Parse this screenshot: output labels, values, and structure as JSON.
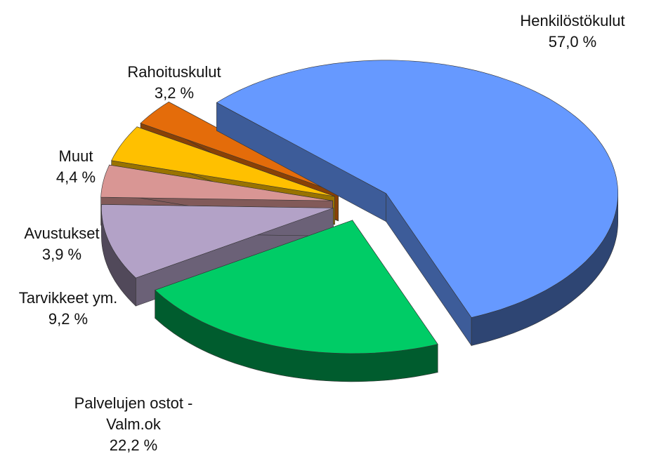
{
  "chart_data": {
    "type": "pie",
    "categories": [
      "Henkilöstökulut",
      "Palvelujen ostot - Valm.ok",
      "Tarvikkeet ym.",
      "Avustukset",
      "Muut",
      "Rahoituskulut"
    ],
    "values": [
      57.0,
      22.2,
      9.2,
      3.9,
      4.4,
      3.2
    ],
    "value_labels": [
      "57,0 %",
      "22,2 %",
      "9,2 %",
      "3,9 %",
      "4,4 %",
      "3,2 %"
    ],
    "colors": [
      "#6699ff",
      "#00cc66",
      "#b3a2c7",
      "#d99694",
      "#ffc000",
      "#e46c0a"
    ]
  }
}
